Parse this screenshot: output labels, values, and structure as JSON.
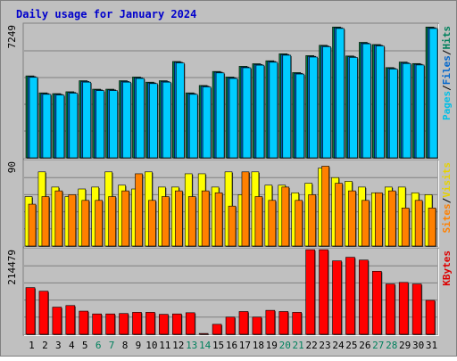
{
  "chart_data": {
    "type": "bar",
    "title": "Daily usage for January 2024",
    "categories": [
      "1",
      "2",
      "3",
      "4",
      "5",
      "6",
      "7",
      "8",
      "9",
      "10",
      "11",
      "12",
      "13",
      "14",
      "15",
      "16",
      "17",
      "18",
      "19",
      "20",
      "21",
      "22",
      "23",
      "24",
      "25",
      "26",
      "27",
      "28",
      "29",
      "30",
      "31"
    ],
    "weekend_days": [
      "6",
      "7",
      "13",
      "14",
      "20",
      "21",
      "27",
      "28"
    ],
    "panels": [
      {
        "id": "top",
        "max_label": "7249",
        "ylim": [
          0,
          7249
        ],
        "legend": [
          {
            "text": "Pages",
            "color": "#00bfe6"
          },
          {
            "text": "/",
            "color": "#000000"
          },
          {
            "text": "Files",
            "color": "#0066cc"
          },
          {
            "text": "/",
            "color": "#000000"
          },
          {
            "text": "Hits",
            "color": "#00805c"
          }
        ],
        "series": [
          {
            "name": "Hits",
            "color": "#008040",
            "values": [
              4440,
              3520,
              3480,
              3580,
              4180,
              3720,
              3720,
              4180,
              4380,
              4100,
              4180,
              5220,
              3520,
              3920,
              4680,
              4380,
              4960,
              5100,
              5260,
              5640,
              4620,
              5540,
              6100,
              7090,
              5520,
              6260,
              6140,
              4890,
              5190,
              5110,
              7090
            ]
          },
          {
            "name": "Files",
            "color": "#0066cc",
            "values": [
              4400,
              3480,
              3440,
              3540,
              4140,
              3680,
              3680,
              4140,
              4340,
              4060,
              4140,
              5180,
              3480,
              3880,
              4640,
              4340,
              4920,
              5060,
              5220,
              5600,
              4580,
              5500,
              6060,
              7050,
              5480,
              6220,
              6100,
              4850,
              5150,
              5070,
              7050
            ]
          },
          {
            "name": "Pages",
            "color": "#00ccff",
            "values": [
              4360,
              3440,
              3400,
              3500,
              4100,
              3640,
              3640,
              4100,
              4300,
              4020,
              4100,
              5140,
              3440,
              3840,
              4600,
              4300,
              4880,
              5020,
              5180,
              5560,
              4540,
              5460,
              6020,
              7010,
              5440,
              6180,
              6060,
              4810,
              5110,
              5030,
              7010
            ]
          }
        ]
      },
      {
        "id": "mid",
        "max_label": "90",
        "ylim": [
          0,
          90
        ],
        "legend": [
          {
            "text": "Sites",
            "color": "#ff8000"
          },
          {
            "text": "/",
            "color": "#000000"
          },
          {
            "text": "Visits",
            "color": "#e6d200"
          }
        ],
        "series": [
          {
            "name": "Visits",
            "color": "#ffff00",
            "values": [
              52,
              78,
              62,
              52,
              60,
              62,
              78,
              64,
              60,
              78,
              62,
              62,
              76,
              76,
              62,
              78,
              54,
              78,
              64,
              64,
              56,
              66,
              82,
              72,
              68,
              62,
              56,
              62,
              62,
              56,
              54
            ]
          },
          {
            "name": "Sites",
            "color": "#ff8000",
            "values": [
              44,
              52,
              58,
              54,
              48,
              48,
              52,
              58,
              76,
              48,
              52,
              58,
              52,
              58,
              56,
              42,
              78,
              52,
              48,
              62,
              48,
              54,
              84,
              66,
              58,
              48,
              56,
              58,
              40,
              48,
              40
            ]
          }
        ]
      },
      {
        "id": "bot",
        "max_label": "214479",
        "ylim": [
          0,
          214479
        ],
        "legend": [
          {
            "text": "KBytes",
            "color": "#dd0000"
          }
        ],
        "series": [
          {
            "name": "KBytes",
            "color": "#ff0000",
            "values": [
              117000,
              108000,
              68000,
              72000,
              58000,
              51000,
              51000,
              52000,
              55000,
              55000,
              50000,
              51000,
              54000,
              2000,
              25000,
              43000,
              57000,
              43000,
              60000,
              57000,
              55000,
              212000,
              212000,
              184000,
              193000,
              186000,
              158000,
              126000,
              130000,
              126000,
              85000
            ]
          }
        ]
      }
    ]
  }
}
